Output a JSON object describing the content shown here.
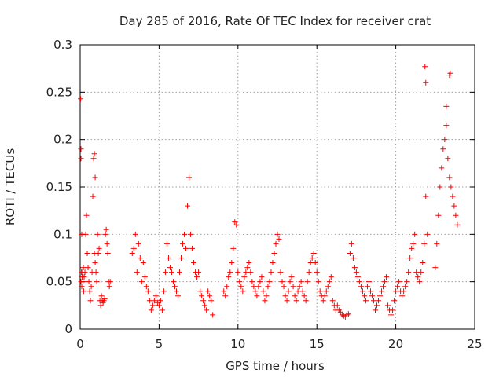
{
  "chart_data": {
    "type": "scatter",
    "title": "Day 285 of 2016, Rate Of TEC Index for receiver crat",
    "xlabel": "GPS time / hours",
    "ylabel": "ROTI / TECUs",
    "xlim": [
      0,
      25
    ],
    "ylim": [
      0,
      0.3
    ],
    "xticks": [
      0,
      5,
      10,
      15,
      20,
      25
    ],
    "xtick_labels": [
      "0",
      "5",
      "10",
      "15",
      "20",
      "25"
    ],
    "yticks": [
      0,
      0.05,
      0.1,
      0.15,
      0.2,
      0.25,
      0.3
    ],
    "ytick_labels": [
      "0",
      "0.05",
      "0.1",
      "0.15",
      "0.2",
      "0.25",
      "0.3"
    ],
    "grid": true,
    "marker": "+",
    "series": [
      {
        "name": "ROTI",
        "color": "#ff0000",
        "x": [
          0.05,
          0.05,
          0.08,
          0.1,
          0.12,
          0.15,
          0.18,
          0.2,
          0.22,
          0.25,
          0.3,
          0.35,
          0.4,
          0.45,
          0.5,
          0.55,
          0.6,
          0.65,
          0.7,
          0.75,
          0.8,
          0.85,
          0.9,
          0.95,
          1.0,
          1.05,
          1.1,
          1.15,
          1.2,
          1.25,
          1.3,
          1.35,
          1.4,
          1.45,
          1.5,
          1.55,
          1.6,
          1.65,
          1.7,
          1.75,
          1.8,
          1.85,
          1.9,
          3.3,
          3.4,
          3.5,
          3.6,
          3.7,
          3.8,
          3.9,
          4.0,
          4.1,
          4.2,
          4.3,
          4.4,
          4.5,
          4.6,
          4.7,
          4.8,
          4.9,
          5.0,
          5.1,
          5.2,
          5.3,
          5.4,
          5.5,
          5.6,
          5.7,
          5.8,
          5.9,
          6.0,
          6.1,
          6.2,
          6.3,
          6.4,
          6.5,
          6.6,
          6.7,
          6.8,
          6.9,
          7.0,
          7.1,
          7.2,
          7.3,
          7.4,
          7.5,
          7.6,
          7.7,
          7.8,
          7.9,
          8.0,
          8.1,
          8.2,
          8.3,
          8.4,
          9.1,
          9.2,
          9.3,
          9.4,
          9.5,
          9.6,
          9.7,
          9.8,
          9.9,
          10.0,
          10.1,
          10.2,
          10.3,
          10.4,
          10.5,
          10.6,
          10.7,
          10.8,
          10.9,
          11.0,
          11.1,
          11.2,
          11.3,
          11.4,
          11.5,
          11.6,
          11.7,
          11.8,
          11.9,
          12.0,
          12.1,
          12.2,
          12.3,
          12.4,
          12.5,
          12.6,
          12.7,
          12.8,
          12.9,
          13.0,
          13.1,
          13.2,
          13.3,
          13.4,
          13.5,
          13.6,
          13.7,
          13.8,
          13.9,
          14.0,
          14.1,
          14.2,
          14.3,
          14.4,
          14.5,
          14.6,
          14.7,
          14.8,
          14.9,
          15.0,
          15.1,
          15.2,
          15.3,
          15.4,
          15.5,
          15.6,
          15.7,
          15.8,
          15.9,
          16.0,
          16.1,
          16.2,
          16.3,
          16.4,
          16.5,
          16.6,
          16.7,
          16.8,
          16.9,
          17.0,
          17.1,
          17.2,
          17.3,
          17.4,
          17.5,
          17.6,
          17.7,
          17.8,
          17.9,
          18.0,
          18.1,
          18.2,
          18.3,
          18.4,
          18.5,
          18.6,
          18.7,
          18.8,
          18.9,
          19.0,
          19.1,
          19.2,
          19.3,
          19.4,
          19.5,
          19.6,
          19.7,
          19.8,
          19.9,
          20.0,
          20.1,
          20.2,
          20.3,
          20.4,
          20.5,
          20.6,
          20.7,
          20.8,
          20.9,
          21.0,
          21.1,
          21.2,
          21.3,
          21.4,
          21.5,
          21.6,
          21.7,
          21.8,
          21.9,
          22.0,
          22.5,
          22.6,
          22.7,
          22.8,
          22.9,
          23.0,
          23.1,
          23.2,
          23.3,
          23.4,
          23.5,
          23.6,
          23.7,
          23.8,
          23.9,
          0.03,
          0.05,
          0.1,
          0.9,
          0.95,
          21.85,
          21.9,
          23.4,
          23.45,
          23.2
        ],
        "y": [
          0.05,
          0.18,
          0.06,
          0.045,
          0.055,
          0.06,
          0.05,
          0.065,
          0.04,
          0.055,
          0.06,
          0.1,
          0.12,
          0.08,
          0.065,
          0.05,
          0.04,
          0.03,
          0.045,
          0.06,
          0.14,
          0.18,
          0.08,
          0.07,
          0.06,
          0.05,
          0.1,
          0.08,
          0.085,
          0.03,
          0.025,
          0.035,
          0.03,
          0.028,
          0.03,
          0.032,
          0.1,
          0.105,
          0.09,
          0.08,
          0.05,
          0.045,
          0.05,
          0.08,
          0.085,
          0.1,
          0.06,
          0.09,
          0.075,
          0.05,
          0.07,
          0.055,
          0.045,
          0.04,
          0.03,
          0.02,
          0.025,
          0.03,
          0.035,
          0.028,
          0.025,
          0.03,
          0.02,
          0.04,
          0.06,
          0.09,
          0.075,
          0.065,
          0.06,
          0.05,
          0.045,
          0.04,
          0.035,
          0.06,
          0.075,
          0.09,
          0.1,
          0.085,
          0.13,
          0.16,
          0.1,
          0.085,
          0.07,
          0.06,
          0.055,
          0.06,
          0.04,
          0.035,
          0.03,
          0.025,
          0.02,
          0.04,
          0.035,
          0.03,
          0.015,
          0.04,
          0.035,
          0.045,
          0.055,
          0.06,
          0.07,
          0.085,
          0.113,
          0.11,
          0.06,
          0.05,
          0.045,
          0.04,
          0.055,
          0.06,
          0.065,
          0.07,
          0.06,
          0.05,
          0.045,
          0.04,
          0.035,
          0.045,
          0.05,
          0.055,
          0.04,
          0.03,
          0.035,
          0.045,
          0.05,
          0.06,
          0.07,
          0.08,
          0.09,
          0.1,
          0.095,
          0.06,
          0.05,
          0.045,
          0.035,
          0.03,
          0.04,
          0.05,
          0.055,
          0.045,
          0.035,
          0.03,
          0.04,
          0.045,
          0.05,
          0.04,
          0.035,
          0.03,
          0.05,
          0.06,
          0.07,
          0.075,
          0.08,
          0.07,
          0.06,
          0.05,
          0.04,
          0.035,
          0.03,
          0.035,
          0.04,
          0.045,
          0.05,
          0.055,
          0.03,
          0.025,
          0.02,
          0.025,
          0.02,
          0.018,
          0.015,
          0.014,
          0.013,
          0.015,
          0.016,
          0.08,
          0.09,
          0.075,
          0.065,
          0.06,
          0.055,
          0.05,
          0.045,
          0.04,
          0.035,
          0.03,
          0.045,
          0.05,
          0.04,
          0.035,
          0.03,
          0.02,
          0.025,
          0.03,
          0.035,
          0.04,
          0.045,
          0.05,
          0.055,
          0.025,
          0.02,
          0.015,
          0.02,
          0.03,
          0.04,
          0.045,
          0.05,
          0.04,
          0.035,
          0.04,
          0.045,
          0.05,
          0.06,
          0.075,
          0.085,
          0.09,
          0.1,
          0.06,
          0.055,
          0.05,
          0.06,
          0.07,
          0.09,
          0.14,
          0.1,
          0.065,
          0.09,
          0.12,
          0.15,
          0.17,
          0.19,
          0.2,
          0.215,
          0.18,
          0.16,
          0.15,
          0.14,
          0.13,
          0.12,
          0.11,
          0.243,
          0.19,
          0.1,
          0.185,
          0.16,
          0.277,
          0.26,
          0.268,
          0.27,
          0.235
        ]
      }
    ]
  }
}
